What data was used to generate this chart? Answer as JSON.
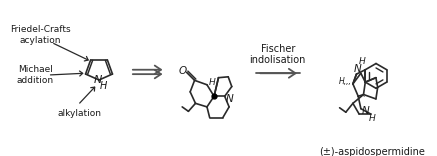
{
  "bg_color": "#ffffff",
  "text_color": "#1a1a1a",
  "line_color": "#2a2a2a",
  "fig_width": 4.37,
  "fig_height": 1.56,
  "dpi": 100,
  "annotations": {
    "friedel_crafts": "Friedel-Crafts\nacylation",
    "michael": "Michael\naddition",
    "alkylation": "alkylation",
    "fischer": "Fischer\nindolisation",
    "product_name": "(±)-aspidospermidine"
  }
}
